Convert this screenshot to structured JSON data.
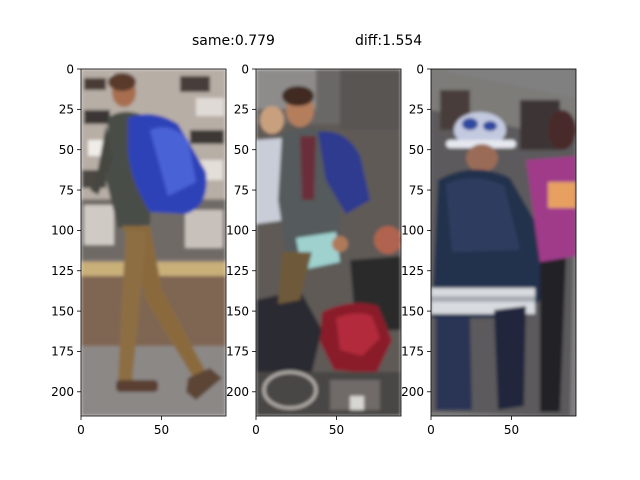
{
  "header": {
    "same_label": "same:0.779",
    "diff_label": "diff:1.554"
  },
  "chart_data": {
    "type": "image_panels",
    "title_texts": [
      "same:0.779",
      "diff:1.554"
    ],
    "scores": {
      "same": 0.779,
      "diff": 1.554
    },
    "xlim": [
      0,
      90
    ],
    "ylim": [
      215,
      0
    ],
    "yticks": [
      0,
      25,
      50,
      75,
      100,
      125,
      150,
      175,
      200
    ],
    "xticks": [
      0,
      50
    ],
    "ytick_labels": [
      "0",
      "25",
      "50",
      "75",
      "100",
      "125",
      "150",
      "175",
      "200"
    ],
    "xtick_labels": [
      "0",
      "50"
    ],
    "panels": [
      {
        "name": "anchor",
        "content": "person-with-blue-backpack-walking"
      },
      {
        "name": "positive",
        "content": "same-person-with-blue-backpack-in-crowd"
      },
      {
        "name": "negative",
        "content": "person-in-navy-hoodie-and-white-cap-rotated"
      }
    ]
  }
}
